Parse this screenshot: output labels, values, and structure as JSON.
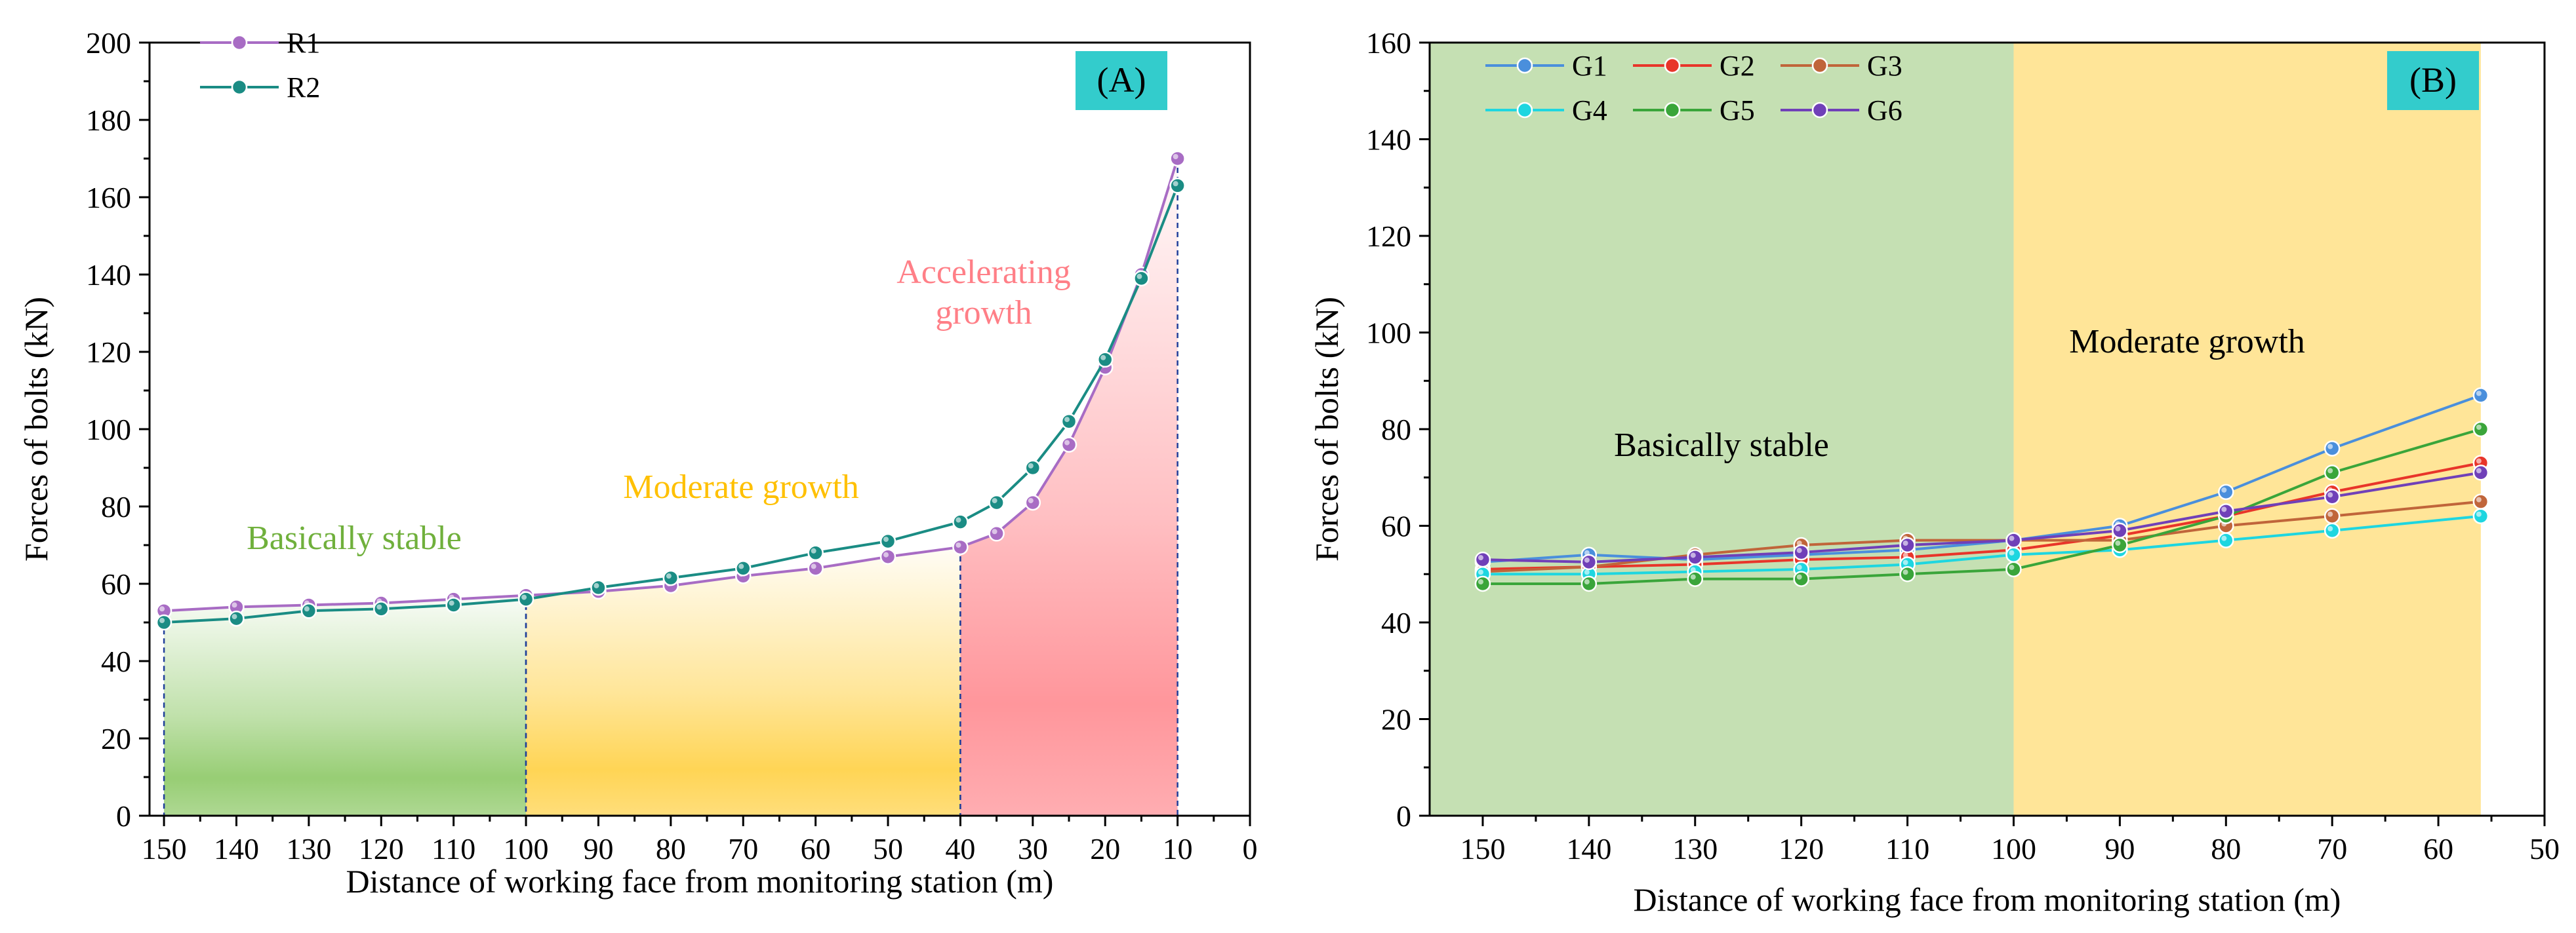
{
  "chart_data": [
    {
      "type": "line",
      "panel_label": "(A)",
      "xlabel": "Distance of working face from monitoring station (m)",
      "ylabel": "Forces of bolts (kN)",
      "xlim": [
        152,
        0
      ],
      "ylim": [
        0,
        200
      ],
      "x_ticks": [
        150,
        140,
        130,
        120,
        110,
        100,
        90,
        80,
        70,
        60,
        50,
        40,
        30,
        20,
        10,
        0
      ],
      "y_ticks": [
        0,
        20,
        40,
        60,
        80,
        100,
        120,
        140,
        160,
        180,
        200
      ],
      "x_tick_labels": [
        "150",
        "140",
        "130",
        "120",
        "110",
        "100",
        "90",
        "80",
        "70",
        "60",
        "50",
        "40",
        "30",
        "20",
        "10",
        "0"
      ],
      "y_tick_labels": [
        "0",
        "20",
        "40",
        "60",
        "80",
        "100",
        "120",
        "140",
        "160",
        "180",
        "200"
      ],
      "grid": false,
      "legend_position": "top-left",
      "regions": [
        {
          "label": "Basically stable",
          "from": 150,
          "to": 100,
          "color": "#8cc865",
          "label_color": "#70b03c"
        },
        {
          "label": "Moderate growth",
          "from": 100,
          "to": 40,
          "color": "#ffd042",
          "label_color": "#ffc000"
        },
        {
          "label": "Accelerating growth",
          "label_lines": [
            "Accelerating",
            "growth"
          ],
          "from": 40,
          "to": 10,
          "color": "#ff8a90",
          "label_color": "#ff7f87"
        }
      ],
      "series": [
        {
          "name": "R1",
          "color": "#a86cc4",
          "x": [
            150,
            140,
            130,
            120,
            110,
            100,
            90,
            80,
            70,
            60,
            50,
            40,
            35,
            30,
            25,
            20,
            15,
            10
          ],
          "values": [
            53,
            54,
            54.5,
            55,
            56,
            57,
            58,
            59.5,
            62,
            64,
            67,
            69.5,
            73,
            81,
            96,
            116,
            140,
            170
          ]
        },
        {
          "name": "R2",
          "color": "#1a8c84",
          "x": [
            150,
            140,
            130,
            120,
            110,
            100,
            90,
            80,
            70,
            60,
            50,
            40,
            35,
            30,
            25,
            20,
            15,
            10
          ],
          "values": [
            50,
            51,
            53,
            53.5,
            54.5,
            56,
            59,
            61.5,
            64,
            68,
            71,
            76,
            81,
            90,
            102,
            118,
            139,
            163
          ]
        }
      ]
    },
    {
      "type": "line",
      "panel_label": "(B)",
      "xlabel": "Distance of working face from monitoring station (m)",
      "ylabel": "Forces of bolts (kN)",
      "xlim": [
        155,
        50
      ],
      "ylim": [
        0,
        160
      ],
      "x_ticks": [
        150,
        140,
        130,
        120,
        110,
        100,
        90,
        80,
        70,
        60,
        50
      ],
      "y_ticks": [
        0,
        20,
        40,
        60,
        80,
        100,
        120,
        140,
        160
      ],
      "x_tick_labels": [
        "150",
        "140",
        "130",
        "120",
        "110",
        "100",
        "90",
        "80",
        "70",
        "60",
        "50"
      ],
      "y_tick_labels": [
        "0",
        "20",
        "40",
        "60",
        "80",
        "100",
        "120",
        "140",
        "160"
      ],
      "grid": false,
      "legend_position": "top-left",
      "regions": [
        {
          "label": "Basically stable",
          "from": 155,
          "to": 100,
          "color": "#c5e0b3"
        },
        {
          "label": "Moderate growth",
          "from": 100,
          "to": 56,
          "color": "#ffe598"
        }
      ],
      "series": [
        {
          "name": "G1",
          "color": "#4a8fdc",
          "x": [
            150,
            140,
            130,
            120,
            110,
            100,
            90,
            80,
            70,
            56
          ],
          "values": [
            52.5,
            54,
            53,
            54,
            55,
            57,
            60,
            67,
            76,
            87
          ]
        },
        {
          "name": "G2",
          "color": "#e8352a",
          "x": [
            150,
            140,
            130,
            120,
            110,
            100,
            90,
            80,
            70,
            56
          ],
          "values": [
            51,
            51.5,
            52,
            53,
            53.5,
            55,
            58,
            62,
            67,
            73
          ]
        },
        {
          "name": "G3",
          "color": "#c0653a",
          "x": [
            150,
            140,
            130,
            120,
            110,
            100,
            90,
            80,
            70,
            56
          ],
          "values": [
            50.5,
            51.5,
            54,
            56,
            57,
            57,
            57,
            60,
            62,
            65
          ]
        },
        {
          "name": "G4",
          "color": "#1ed6e0",
          "x": [
            150,
            140,
            130,
            120,
            110,
            100,
            90,
            80,
            70,
            56
          ],
          "values": [
            50,
            50,
            50.5,
            51,
            52,
            54,
            55,
            57,
            59,
            62
          ]
        },
        {
          "name": "G5",
          "color": "#3aa53a",
          "x": [
            150,
            140,
            130,
            120,
            110,
            100,
            90,
            80,
            70,
            56
          ],
          "values": [
            48,
            48,
            49,
            49,
            50,
            51,
            56,
            62,
            71,
            80
          ]
        },
        {
          "name": "G6",
          "color": "#7040b8",
          "x": [
            150,
            140,
            130,
            120,
            110,
            100,
            90,
            80,
            70,
            56
          ],
          "values": [
            53,
            52.5,
            53.5,
            54.5,
            56,
            57,
            59,
            63,
            66,
            71
          ]
        }
      ]
    }
  ]
}
